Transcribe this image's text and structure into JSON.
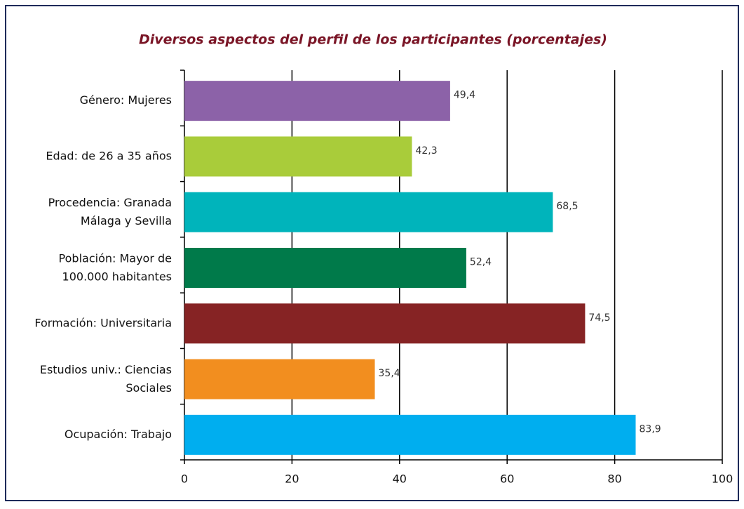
{
  "chart_data": {
    "type": "hbar",
    "title": "Diversos aspectos del perfil de los participantes (porcentajes)",
    "categories": [
      "Género: Mujeres",
      "Edad: de 26 a 35 años",
      "Procedencia: Granada\nMálaga y Sevilla",
      "Población: Mayor de\n100.000 habitantes",
      "Formación: Universitaria",
      "Estudios univ.: Ciencias\nSociales",
      "Ocupación: Trabajo"
    ],
    "values": [
      49.4,
      42.3,
      68.5,
      52.4,
      74.5,
      35.4,
      83.9
    ],
    "value_labels": [
      "49,4",
      "42,3",
      "68,5",
      "52,4",
      "74,5",
      "35,4",
      "83,9"
    ],
    "colors": [
      "#8c62a8",
      "#a9cc3a",
      "#00b4bb",
      "#007a4a",
      "#862324",
      "#f28e1f",
      "#00aeef"
    ],
    "xlim": [
      0,
      100
    ],
    "xticks": [
      0,
      20,
      40,
      60,
      80,
      100
    ],
    "grid": true
  }
}
